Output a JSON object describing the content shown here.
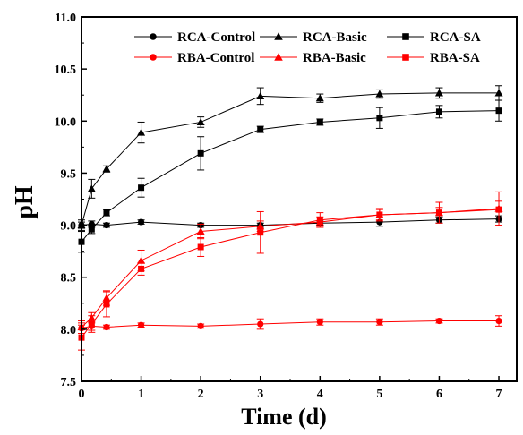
{
  "chart_data": {
    "type": "line",
    "title": "",
    "xlabel": "Time (d)",
    "ylabel": "pH",
    "xlim": [
      0,
      7.3
    ],
    "ylim": [
      7.5,
      11.0
    ],
    "x_ticks": [
      0,
      1,
      2,
      3,
      4,
      5,
      6,
      7
    ],
    "y_ticks": [
      7.5,
      8.0,
      8.5,
      9.0,
      9.5,
      10.0,
      10.5,
      11.0
    ],
    "x_tick_labels": [
      "0",
      "1",
      "2",
      "3",
      "4",
      "5",
      "6",
      "7"
    ],
    "y_tick_labels": [
      "7.5",
      "8.0",
      "8.5",
      "9.0",
      "9.5",
      "10.0",
      "10.5",
      "11.0"
    ],
    "grid": false,
    "legend_position": "top-right",
    "series": [
      {
        "name": "RCA-Control",
        "color": "#000000",
        "marker": "circle",
        "x": [
          0,
          0.17,
          0.42,
          1,
          2,
          3,
          4,
          5,
          6,
          7
        ],
        "y": [
          9.0,
          9.01,
          9.0,
          9.03,
          9.0,
          9.0,
          9.02,
          9.03,
          9.05,
          9.06
        ],
        "err": [
          0.03,
          0.03,
          0.02,
          0.02,
          0.02,
          0.02,
          0.02,
          0.04,
          0.03,
          0.03
        ]
      },
      {
        "name": "RCA-Basic",
        "color": "#000000",
        "marker": "triangle",
        "x": [
          0,
          0.17,
          0.42,
          1,
          2,
          3,
          4,
          5,
          6,
          7
        ],
        "y": [
          9.0,
          9.35,
          9.54,
          9.89,
          9.99,
          10.24,
          10.22,
          10.26,
          10.27,
          10.27
        ],
        "err": [
          0.05,
          0.09,
          0.03,
          0.1,
          0.05,
          0.08,
          0.04,
          0.04,
          0.05,
          0.07
        ]
      },
      {
        "name": "RCA-SA",
        "color": "#000000",
        "marker": "square",
        "x": [
          0,
          0.17,
          0.42,
          1,
          2,
          3,
          4,
          5,
          6,
          7
        ],
        "y": [
          8.84,
          8.96,
          9.12,
          9.36,
          9.69,
          9.92,
          9.99,
          10.03,
          10.09,
          10.1
        ],
        "err": [
          0.1,
          0.04,
          0.03,
          0.09,
          0.16,
          0.03,
          0.03,
          0.1,
          0.06,
          0.1
        ]
      },
      {
        "name": "RBA-Control",
        "color": "#ff0000",
        "marker": "circle",
        "x": [
          0,
          0.17,
          0.42,
          1,
          2,
          3,
          4,
          5,
          6,
          7
        ],
        "y": [
          8.01,
          8.03,
          8.02,
          8.04,
          8.03,
          8.05,
          8.07,
          8.07,
          8.08,
          8.08
        ],
        "err": [
          0.05,
          0.04,
          0.02,
          0.02,
          0.02,
          0.05,
          0.03,
          0.03,
          0.02,
          0.05
        ]
      },
      {
        "name": "RBA-Basic",
        "color": "#ff0000",
        "marker": "triangle",
        "x": [
          0,
          0.17,
          0.42,
          1,
          2,
          3,
          4,
          5,
          6,
          7
        ],
        "y": [
          8.02,
          8.11,
          8.3,
          8.66,
          8.94,
          8.99,
          9.03,
          9.1,
          9.12,
          9.16
        ],
        "err": [
          0.06,
          0.05,
          0.07,
          0.1,
          0.07,
          0.05,
          0.05,
          0.06,
          0.1,
          0.16
        ]
      },
      {
        "name": "RBA-SA",
        "color": "#ff0000",
        "marker": "square",
        "x": [
          0,
          0.17,
          0.42,
          1,
          2,
          3,
          4,
          5,
          6,
          7
        ],
        "y": [
          7.92,
          8.05,
          8.24,
          8.58,
          8.79,
          8.93,
          9.05,
          9.1,
          9.12,
          9.15
        ],
        "err": [
          0.12,
          0.08,
          0.12,
          0.06,
          0.09,
          0.2,
          0.07,
          0.05,
          0.05,
          0.08
        ]
      }
    ]
  }
}
